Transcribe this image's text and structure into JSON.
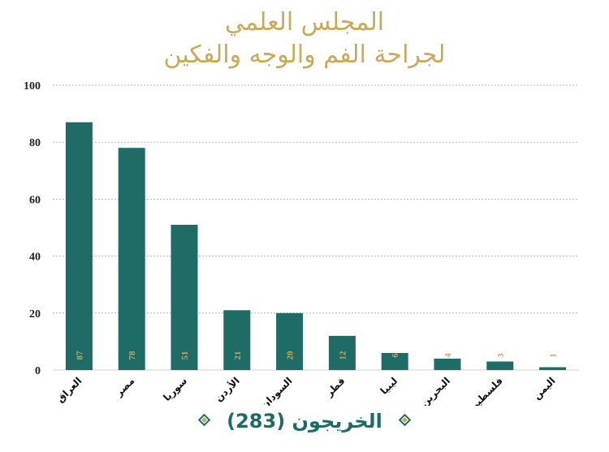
{
  "chart_data": {
    "type": "bar",
    "title": [
      "المجلس العلمي",
      "لجراحة الفم والوجه والفكين"
    ],
    "categories": [
      "العراق",
      "مصر",
      "سوريا",
      "الأردن",
      "السودان",
      "قطر",
      "ليبيا",
      "البحرين",
      "فلسطين",
      "اليمن"
    ],
    "values": [
      87,
      78,
      51,
      21,
      20,
      12,
      6,
      4,
      3,
      1
    ],
    "ylim": [
      0,
      100
    ],
    "yticks": [
      0,
      20,
      40,
      60,
      80,
      100
    ],
    "grid": true,
    "bar_color": "#1f6b66",
    "label_color": "#c9a95c",
    "total_label": "الخريجون",
    "total_value": "(283)"
  }
}
